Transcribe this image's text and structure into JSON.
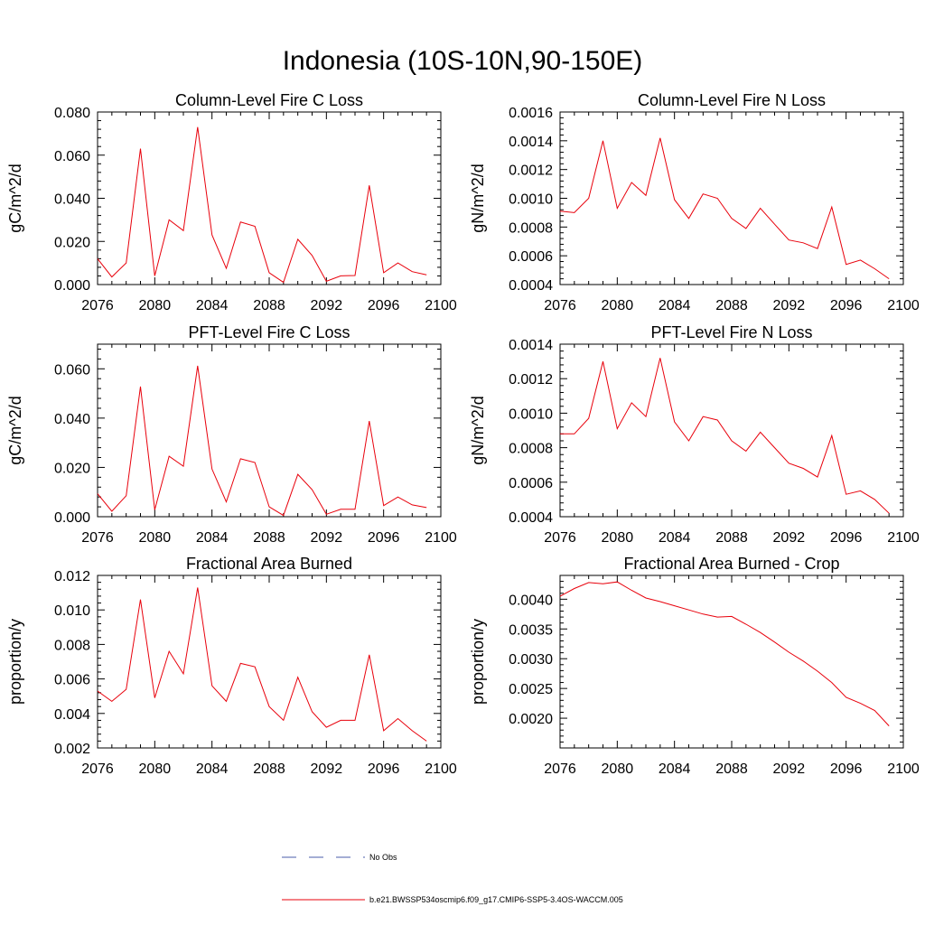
{
  "figure": {
    "title": "Indonesia (10S-10N,90-150E)"
  },
  "legend": [
    {
      "label": "No Obs",
      "color": "#4a5ea8",
      "dash": true
    },
    {
      "label": "b.e21.BWSSP534oscmip6.f09_g17.CMIP6-SSP5-3.4OS-WACCM.005",
      "color": "#e8000b",
      "dash": false
    }
  ],
  "series_color": "#e8000b",
  "chart_data": [
    {
      "type": "line",
      "title": "Column-Level Fire C Loss",
      "ylabel": "gC/m^2/d",
      "xlim": [
        2076,
        2100
      ],
      "ylim": [
        0.0,
        0.08
      ],
      "xticks": [
        "2076",
        "2080",
        "2084",
        "2088",
        "2092",
        "2096",
        "2100"
      ],
      "yticks": [
        "0.000",
        "0.020",
        "0.040",
        "0.060",
        "0.080"
      ],
      "x": [
        2076,
        2077,
        2078,
        2079,
        2080,
        2081,
        2082,
        2083,
        2084,
        2085,
        2086,
        2087,
        2088,
        2089,
        2090,
        2091,
        2092,
        2093,
        2094,
        2095,
        2096,
        2097,
        2098,
        2099
      ],
      "series": [
        {
          "values": [
            0.012,
            0.0035,
            0.01,
            0.063,
            0.004,
            0.03,
            0.025,
            0.073,
            0.023,
            0.0075,
            0.029,
            0.027,
            0.0055,
            0.001,
            0.021,
            0.0135,
            0.0015,
            0.004,
            0.0042,
            0.046,
            0.0055,
            0.01,
            0.006,
            0.0045
          ]
        }
      ]
    },
    {
      "type": "line",
      "title": "Column-Level Fire N Loss",
      "ylabel": "gN/m^2/d",
      "xlim": [
        2076,
        2100
      ],
      "ylim": [
        0.0004,
        0.0016
      ],
      "xticks": [
        "2076",
        "2080",
        "2084",
        "2088",
        "2092",
        "2096",
        "2100"
      ],
      "yticks": [
        "0.0004",
        "0.0006",
        "0.0008",
        "0.0010",
        "0.0012",
        "0.0014",
        "0.0016"
      ],
      "x": [
        2076,
        2077,
        2078,
        2079,
        2080,
        2081,
        2082,
        2083,
        2084,
        2085,
        2086,
        2087,
        2088,
        2089,
        2090,
        2091,
        2092,
        2093,
        2094,
        2095,
        2096,
        2097,
        2098,
        2099
      ],
      "series": [
        {
          "values": [
            0.00091,
            0.0009,
            0.001,
            0.0014,
            0.00093,
            0.00111,
            0.00102,
            0.00142,
            0.00099,
            0.00086,
            0.00103,
            0.001,
            0.00086,
            0.00079,
            0.00093,
            0.00082,
            0.00071,
            0.00069,
            0.00065,
            0.00094,
            0.00054,
            0.00057,
            0.00051,
            0.00044
          ]
        }
      ]
    },
    {
      "type": "line",
      "title": "PFT-Level Fire C Loss",
      "ylabel": "gC/m^2/d",
      "xlim": [
        2076,
        2100
      ],
      "ylim": [
        0.0,
        0.07
      ],
      "xticks": [
        "2076",
        "2080",
        "2084",
        "2088",
        "2092",
        "2096",
        "2100"
      ],
      "yticks": [
        "0.000",
        "0.020",
        "0.040",
        "0.060"
      ],
      "ytick_values": [
        0.0,
        0.02,
        0.04,
        0.06
      ],
      "x": [
        2076,
        2077,
        2078,
        2079,
        2080,
        2081,
        2082,
        2083,
        2084,
        2085,
        2086,
        2087,
        2088,
        2089,
        2090,
        2091,
        2092,
        2093,
        2094,
        2095,
        2096,
        2097,
        2098,
        2099
      ],
      "series": [
        {
          "values": [
            0.0093,
            0.0022,
            0.0085,
            0.0528,
            0.0028,
            0.0245,
            0.0205,
            0.0612,
            0.0193,
            0.006,
            0.0235,
            0.022,
            0.004,
            0.0005,
            0.0172,
            0.011,
            0.001,
            0.003,
            0.003,
            0.0388,
            0.0045,
            0.008,
            0.0048,
            0.0037
          ]
        }
      ]
    },
    {
      "type": "line",
      "title": "PFT-Level Fire N Loss",
      "ylabel": "gN/m^2/d",
      "xlim": [
        2076,
        2100
      ],
      "ylim": [
        0.0004,
        0.0014
      ],
      "xticks": [
        "2076",
        "2080",
        "2084",
        "2088",
        "2092",
        "2096",
        "2100"
      ],
      "yticks": [
        "0.0004",
        "0.0006",
        "0.0008",
        "0.0010",
        "0.0012",
        "0.0014"
      ],
      "x": [
        2076,
        2077,
        2078,
        2079,
        2080,
        2081,
        2082,
        2083,
        2084,
        2085,
        2086,
        2087,
        2088,
        2089,
        2090,
        2091,
        2092,
        2093,
        2094,
        2095,
        2096,
        2097,
        2098,
        2099
      ],
      "series": [
        {
          "values": [
            0.00088,
            0.00088,
            0.00097,
            0.0013,
            0.00091,
            0.00106,
            0.00098,
            0.00132,
            0.00095,
            0.00084,
            0.00098,
            0.00096,
            0.00084,
            0.00078,
            0.00089,
            0.0008,
            0.00071,
            0.00068,
            0.00063,
            0.00087,
            0.00053,
            0.00055,
            0.0005,
            0.00042
          ]
        }
      ]
    },
    {
      "type": "line",
      "title": "Fractional Area Burned",
      "ylabel": "proportion/y",
      "xlim": [
        2076,
        2100
      ],
      "ylim": [
        0.002,
        0.012
      ],
      "xticks": [
        "2076",
        "2080",
        "2084",
        "2088",
        "2092",
        "2096",
        "2100"
      ],
      "yticks": [
        "0.002",
        "0.004",
        "0.006",
        "0.008",
        "0.010",
        "0.012"
      ],
      "x": [
        2076,
        2077,
        2078,
        2079,
        2080,
        2081,
        2082,
        2083,
        2084,
        2085,
        2086,
        2087,
        2088,
        2089,
        2090,
        2091,
        2092,
        2093,
        2094,
        2095,
        2096,
        2097,
        2098,
        2099
      ],
      "series": [
        {
          "values": [
            0.0053,
            0.0047,
            0.0054,
            0.0106,
            0.0049,
            0.0076,
            0.0063,
            0.0113,
            0.0056,
            0.0047,
            0.0069,
            0.0067,
            0.0044,
            0.0036,
            0.0061,
            0.0041,
            0.0032,
            0.0036,
            0.0036,
            0.0074,
            0.003,
            0.0037,
            0.003,
            0.0024
          ]
        }
      ]
    },
    {
      "type": "line",
      "title": "Fractional Area Burned - Crop",
      "ylabel": "proportion/y",
      "xlim": [
        2076,
        2100
      ],
      "ylim": [
        0.0015,
        0.0044
      ],
      "xticks": [
        "2076",
        "2080",
        "2084",
        "2088",
        "2092",
        "2096",
        "2100"
      ],
      "yticks": [
        "0.0020",
        "0.0025",
        "0.0030",
        "0.0035",
        "0.0040"
      ],
      "ytick_values": [
        0.002,
        0.0025,
        0.003,
        0.0035,
        0.004
      ],
      "x": [
        2076,
        2077,
        2078,
        2079,
        2080,
        2081,
        2082,
        2083,
        2084,
        2085,
        2086,
        2087,
        2088,
        2089,
        2090,
        2091,
        2092,
        2093,
        2094,
        2095,
        2096,
        2097,
        2098,
        2099
      ],
      "series": [
        {
          "values": [
            0.00405,
            0.00418,
            0.00428,
            0.00426,
            0.00429,
            0.00415,
            0.00402,
            0.00396,
            0.00389,
            0.00382,
            0.00375,
            0.0037,
            0.00371,
            0.00358,
            0.00344,
            0.00328,
            0.00311,
            0.00296,
            0.00279,
            0.0026,
            0.00235,
            0.00225,
            0.00213,
            0.00187
          ]
        }
      ]
    }
  ]
}
